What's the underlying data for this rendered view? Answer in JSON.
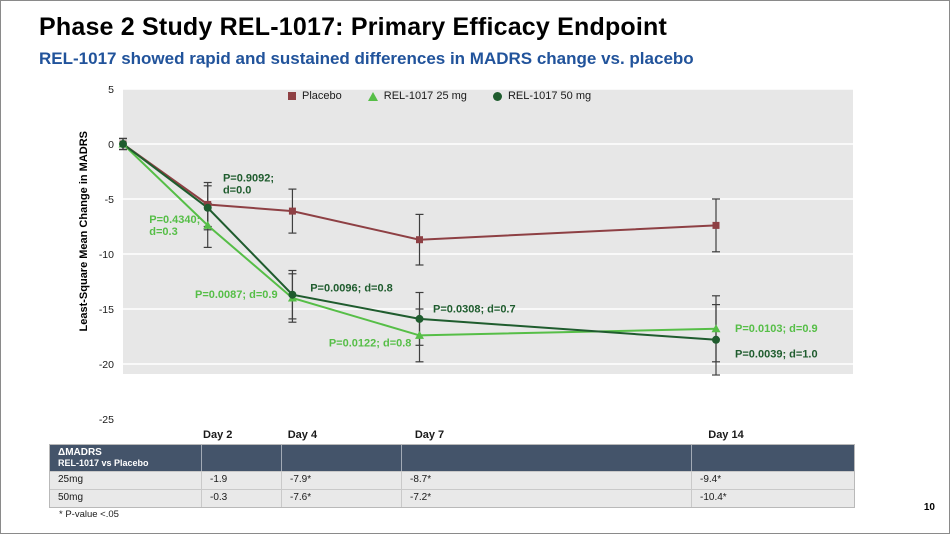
{
  "slide": {
    "title": "Phase 2 Study REL-1017: Primary Efficacy Endpoint",
    "subtitle": "REL-1017 showed rapid and sustained differences in MADRS change vs. placebo",
    "footnote": "* P-value <.05",
    "page_number": "10"
  },
  "chart_data": {
    "type": "line",
    "ylabel": "Least-Square Mean Change in MADRS",
    "ylim": [
      -25,
      5
    ],
    "yticks": [
      5,
      0,
      -5,
      -10,
      -15,
      -20,
      -25
    ],
    "x_tick_labels": [
      "Day 2",
      "Day 4",
      "Day 7",
      "Day 14"
    ],
    "x_tick_days": [
      2,
      4,
      7,
      14
    ],
    "grid": true,
    "plot_bg": "#e7e7e7",
    "legend_position": "top-center",
    "series": [
      {
        "name": "Placebo",
        "marker": "square",
        "color": "#8e4044",
        "days": [
          0,
          2,
          4,
          7,
          14
        ],
        "values": [
          0,
          -5.5,
          -6.1,
          -8.7,
          -7.4
        ],
        "errors": [
          0.5,
          2.0,
          2.0,
          2.3,
          2.4
        ]
      },
      {
        "name": "REL-1017 25 mg",
        "marker": "triangle",
        "color": "#56be47",
        "days": [
          0,
          2,
          4,
          7,
          14
        ],
        "values": [
          0,
          -7.4,
          -14.0,
          -17.4,
          -16.8
        ],
        "errors": [
          0.5,
          2.0,
          2.2,
          2.4,
          3.0
        ]
      },
      {
        "name": "REL-1017 50 mg",
        "marker": "circle",
        "color": "#1f5c2e",
        "days": [
          0,
          2,
          4,
          7,
          14
        ],
        "values": [
          0,
          -5.8,
          -13.7,
          -15.9,
          -17.8
        ],
        "errors": [
          0.5,
          2.0,
          2.2,
          2.4,
          3.2
        ]
      }
    ],
    "annotations": [
      {
        "series": "REL-1017 50 mg",
        "lines": [
          "P=0.9092;",
          "d=0.0"
        ],
        "day": 2.36,
        "value": -3.4
      },
      {
        "series": "REL-1017 25 mg",
        "lines": [
          "P=0.4340;",
          "d=0.3"
        ],
        "day": 0.62,
        "value": -7.2
      },
      {
        "series": "REL-1017 25 mg",
        "lines": [
          "P=0.0087; d=0.9"
        ],
        "day": 1.7,
        "value": -14.0
      },
      {
        "series": "REL-1017 50 mg",
        "lines": [
          "P=0.0096; d=0.8"
        ],
        "day": 4.42,
        "value": -13.4
      },
      {
        "series": "REL-1017 50 mg",
        "lines": [
          "P=0.0308; d=0.7"
        ],
        "day": 7.32,
        "value": -15.3
      },
      {
        "series": "REL-1017 25 mg",
        "lines": [
          "P=0.0122; d=0.8"
        ],
        "day": 4.86,
        "value": -18.4
      },
      {
        "series": "REL-1017 25 mg",
        "lines": [
          "P=0.0103; d=0.9"
        ],
        "day": 14.45,
        "value": -17.1
      },
      {
        "series": "REL-1017 50 mg",
        "lines": [
          "P=0.0039; d=1.0"
        ],
        "day": 14.45,
        "value": -19.4
      }
    ]
  },
  "table": {
    "header": {
      "line1": "ΔMADRS",
      "line2": "REL-1017 vs Placebo"
    },
    "columns": [
      "Day 2",
      "Day 4",
      "Day 7",
      "Day 14"
    ],
    "rows": [
      {
        "label": "25mg",
        "values": [
          "-1.9",
          "-7.9*",
          "-8.7*",
          "-9.4*"
        ]
      },
      {
        "label": "50mg",
        "values": [
          "-0.3",
          "-7.6*",
          "-7.2*",
          "-10.4*"
        ]
      }
    ]
  }
}
